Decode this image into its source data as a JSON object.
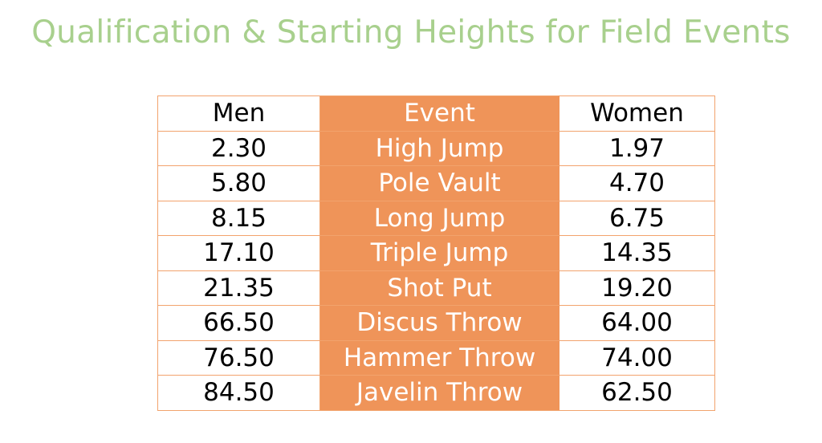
{
  "title": "Qualification & Starting Heights for Field Events",
  "colors": {
    "title": "#a8d08d",
    "accent": "#ef9459",
    "border": "#f2a36d"
  },
  "table": {
    "headers": {
      "men": "Men",
      "event": "Event",
      "women": "Women"
    },
    "rows": [
      {
        "men": "2.30",
        "event": "High Jump",
        "women": "1.97"
      },
      {
        "men": "5.80",
        "event": "Pole Vault",
        "women": "4.70"
      },
      {
        "men": "8.15",
        "event": "Long Jump",
        "women": "6.75"
      },
      {
        "men": "17.10",
        "event": "Triple Jump",
        "women": "14.35"
      },
      {
        "men": "21.35",
        "event": "Shot Put",
        "women": "19.20"
      },
      {
        "men": "66.50",
        "event": "Discus Throw",
        "women": "64.00"
      },
      {
        "men": "76.50",
        "event": "Hammer Throw",
        "women": "74.00"
      },
      {
        "men": "84.50",
        "event": "Javelin Throw",
        "women": "62.50"
      }
    ]
  }
}
